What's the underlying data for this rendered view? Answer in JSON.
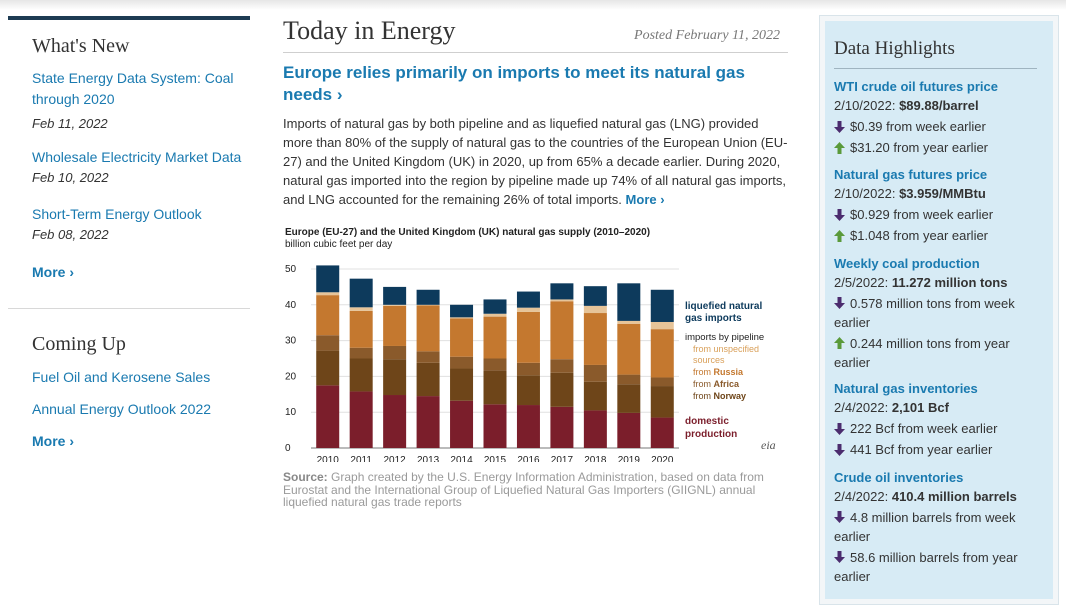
{
  "whats_new": {
    "title": "What's New",
    "items": [
      {
        "label": "State Energy Data System: Coal through 2020",
        "date": "Feb 11, 2022"
      },
      {
        "label": "Wholesale Electricity Market Data",
        "date": "Feb 10, 2022"
      },
      {
        "label": "Short-Term Energy Outlook",
        "date": "Feb 08, 2022"
      }
    ],
    "more": "More ›"
  },
  "coming_up": {
    "title": "Coming Up",
    "items": [
      "Fuel Oil and Kerosene Sales",
      "Annual Energy Outlook 2022"
    ],
    "more": "More ›"
  },
  "article": {
    "section_title": "Today in Energy",
    "posted": "Posted February 11, 2022",
    "headline": "Europe relies primarily on imports to meet its natural gas needs ›",
    "body": "Imports of natural gas by both pipeline and as liquefied natural gas (LNG) provided more than 80% of the supply of natural gas to the countries of the European Union (EU-27) and the United Kingdom (UK) in 2020, up from 65% a decade earlier. During 2020, natural gas imported into the region by pipeline made up 74% of all natural gas imports, and LNG accounted for the remaining 26% of total imports.",
    "more": "More ›",
    "source_label": "Source:",
    "source_text": "Graph created by the U.S. Energy Information Administration, based on data from Eurostat and the International Group of Liquefied Natural Gas Importers (GIIGNL) annual liquefied natural gas trade reports"
  },
  "chart_data": {
    "type": "bar",
    "stacked": true,
    "title": "Europe (EU-27) and the United Kingdom (UK) natural gas supply (2010–2020)",
    "subtitle": "billion cubic feet per day",
    "categories": [
      "2010",
      "2011",
      "2012",
      "2013",
      "2014",
      "2015",
      "2016",
      "2017",
      "2018",
      "2019",
      "2020"
    ],
    "y_ticks": [
      "0",
      "10",
      "20",
      "30",
      "40",
      "50"
    ],
    "ylim": [
      0,
      50
    ],
    "series": [
      {
        "name": "domestic production",
        "color": "#7b1e2b",
        "values": [
          17.5,
          15.8,
          14.8,
          14.5,
          13.2,
          12.2,
          12.0,
          11.5,
          10.5,
          9.8,
          8.5
        ]
      },
      {
        "name": "from Norway",
        "color": "#6e4519",
        "values": [
          9.7,
          9.2,
          10.0,
          9.3,
          9.0,
          9.5,
          8.3,
          9.5,
          8.0,
          8.0,
          8.8
        ]
      },
      {
        "name": "from Africa",
        "color": "#8a5a2b",
        "values": [
          4.3,
          3.0,
          3.7,
          3.2,
          3.3,
          3.3,
          3.5,
          3.8,
          4.7,
          2.7,
          2.4
        ]
      },
      {
        "name": "from Russia",
        "color": "#c4782f",
        "values": [
          11.2,
          10.3,
          11.2,
          12.8,
          10.7,
          11.7,
          14.2,
          16.2,
          14.5,
          14.2,
          13.5
        ]
      },
      {
        "name": "from unspecified sources",
        "color": "#e6c499",
        "values": [
          0.8,
          1.0,
          0.3,
          0.2,
          0.3,
          0.8,
          1.2,
          0.5,
          2.0,
          0.8,
          2.0
        ]
      },
      {
        "name": "liquefied natural gas imports",
        "color": "#0d3a5c",
        "values": [
          7.5,
          8.0,
          5.0,
          4.2,
          3.5,
          4.0,
          4.5,
          4.5,
          5.5,
          10.5,
          9.0
        ]
      }
    ],
    "legend": {
      "lng": "liquefied natural gas imports",
      "pipeline": "imports by pipeline",
      "unspecified": "from unspecified sources",
      "russia": "from Russia",
      "africa": "from Africa",
      "norway": "from Norway",
      "domestic": "domestic production"
    },
    "logo": "eia"
  },
  "data_highlights": {
    "title": "Data Highlights",
    "up_color": "#5a9a3a",
    "down_color": "#4b2c6e",
    "items": [
      {
        "title": "WTI crude oil futures price",
        "date": "2/10/2022:",
        "value": "$89.88/barrel",
        "rows": [
          {
            "dir": "down",
            "text": "$0.39 from week earlier"
          },
          {
            "dir": "up",
            "text": "$31.20 from year earlier"
          }
        ]
      },
      {
        "title": "Natural gas futures price",
        "date": "2/10/2022:",
        "value": "$3.959/MMBtu",
        "rows": [
          {
            "dir": "down",
            "text": "$0.929 from week earlier"
          },
          {
            "dir": "up",
            "text": "$1.048 from year earlier"
          }
        ]
      },
      {
        "title": "Weekly coal production",
        "date": "2/5/2022:",
        "value": "11.272 million tons",
        "rows": [
          {
            "dir": "down",
            "text": "0.578 million tons from week earlier"
          },
          {
            "dir": "up",
            "text": "0.244 million tons from year earlier"
          }
        ]
      },
      {
        "title": "Natural gas inventories",
        "date": "2/4/2022:",
        "value": "2,101 Bcf",
        "rows": [
          {
            "dir": "down",
            "text": "222 Bcf from week earlier"
          },
          {
            "dir": "down",
            "text": "441 Bcf from year earlier"
          }
        ]
      },
      {
        "title": "Crude oil inventories",
        "date": "2/4/2022:",
        "value": "410.4 million barrels",
        "rows": [
          {
            "dir": "down",
            "text": "4.8 million barrels from week earlier"
          },
          {
            "dir": "down",
            "text": "58.6 million barrels from year earlier"
          }
        ]
      }
    ]
  }
}
